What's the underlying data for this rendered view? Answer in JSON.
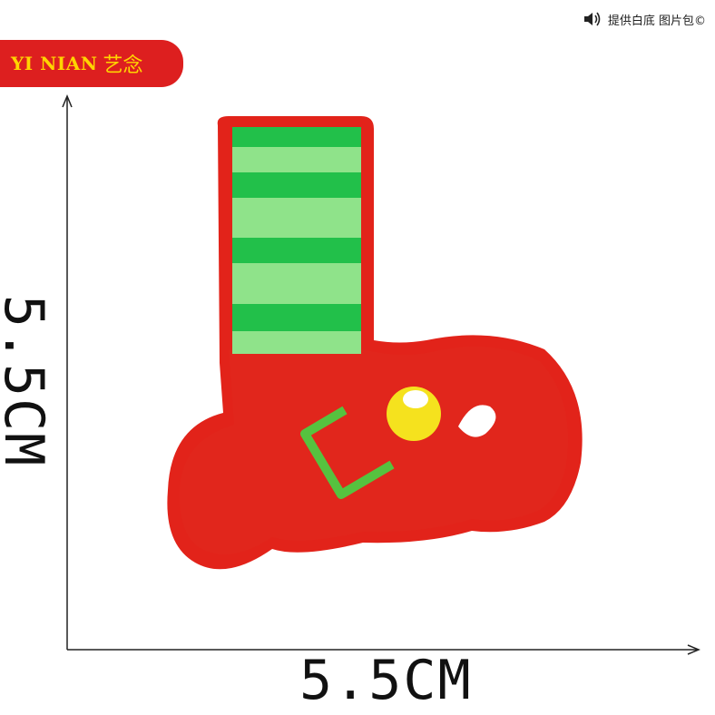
{
  "brand": {
    "latin": "YI NIAN",
    "cjk": "艺念",
    "badge_color": "#dd1f1f",
    "text_color": "#ffd400"
  },
  "notice": {
    "icon": "speaker-icon",
    "text": "提供白底 图片包©"
  },
  "dimensions": {
    "width_label": "5.5CM",
    "height_label": "5.5CM"
  },
  "product": {
    "name": "",
    "colors": {
      "felt_border": "#e2231a",
      "boot": "#e1261c",
      "stripe_dark": "#22c04a",
      "stripe_light": "#8fe38a",
      "buckle": "#56c23f",
      "bell": "#f5e21e",
      "bell_highlight": "#ffffff"
    }
  }
}
